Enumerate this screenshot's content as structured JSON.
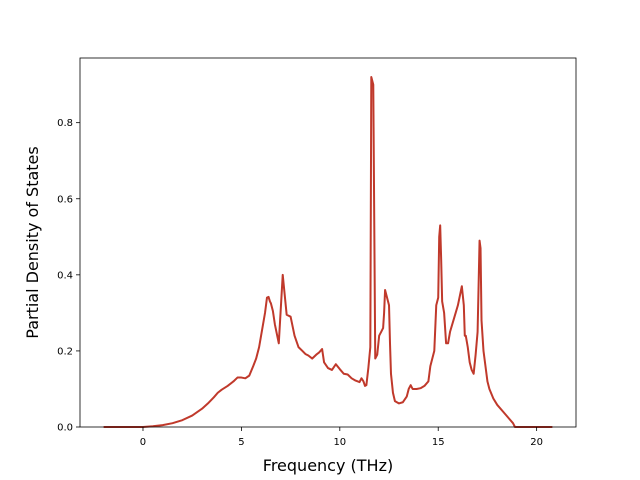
{
  "chart_data": {
    "type": "line",
    "xlabel": "Frequency (THz)",
    "ylabel": "Partial Density of States",
    "xlim": [
      -3.2,
      22.0
    ],
    "ylim": [
      0.0,
      0.97
    ],
    "x_ticks": [
      0,
      5,
      10,
      15,
      20
    ],
    "y_ticks": [
      0.0,
      0.2,
      0.4,
      0.6,
      0.8
    ],
    "x_tick_labels": [
      "0",
      "5",
      "10",
      "15",
      "20"
    ],
    "y_tick_labels": [
      "0.0",
      "0.2",
      "0.4",
      "0.6",
      "0.8"
    ],
    "grid": false,
    "series": [
      {
        "color": "#c0392b",
        "x": [
          -2.0,
          -1.0,
          0.0,
          0.5,
          1.0,
          1.5,
          2.0,
          2.5,
          3.0,
          3.3,
          3.6,
          3.8,
          4.0,
          4.3,
          4.6,
          4.8,
          5.0,
          5.2,
          5.4,
          5.6,
          5.75,
          5.9,
          6.0,
          6.1,
          6.2,
          6.3,
          6.38,
          6.45,
          6.5,
          6.6,
          6.7,
          6.9,
          7.1,
          7.3,
          7.5,
          7.7,
          7.9,
          8.1,
          8.25,
          8.4,
          8.6,
          8.8,
          8.95,
          9.1,
          9.2,
          9.4,
          9.6,
          9.8,
          10.0,
          10.2,
          10.4,
          10.6,
          10.8,
          10.9,
          11.0,
          11.1,
          11.2,
          11.28,
          11.35,
          11.45,
          11.55,
          11.6,
          11.7,
          11.8,
          11.9,
          12.0,
          12.1,
          12.2,
          12.25,
          12.3,
          12.4,
          12.5,
          12.55,
          12.6,
          12.7,
          12.8,
          13.0,
          13.2,
          13.4,
          13.5,
          13.6,
          13.7,
          13.9,
          14.1,
          14.3,
          14.5,
          14.6,
          14.8,
          14.9,
          15.0,
          15.05,
          15.1,
          15.15,
          15.2,
          15.3,
          15.4,
          15.5,
          15.6,
          15.8,
          16.0,
          16.2,
          16.3,
          16.35,
          16.4,
          16.5,
          16.6,
          16.7,
          16.8,
          16.9,
          17.0,
          17.1,
          17.15,
          17.2,
          17.3,
          17.4,
          17.5,
          17.6,
          17.8,
          18.0,
          18.3,
          18.6,
          18.8,
          18.9,
          19.0,
          19.2,
          19.5,
          20.0,
          20.5,
          20.8
        ],
        "y": [
          0.0,
          0.0,
          0.0,
          0.002,
          0.005,
          0.01,
          0.018,
          0.03,
          0.048,
          0.062,
          0.078,
          0.09,
          0.098,
          0.108,
          0.12,
          0.13,
          0.13,
          0.128,
          0.135,
          0.16,
          0.18,
          0.21,
          0.24,
          0.27,
          0.3,
          0.34,
          0.342,
          0.33,
          0.325,
          0.305,
          0.27,
          0.22,
          0.4,
          0.295,
          0.29,
          0.24,
          0.21,
          0.2,
          0.192,
          0.188,
          0.18,
          0.19,
          0.196,
          0.205,
          0.17,
          0.155,
          0.15,
          0.165,
          0.152,
          0.14,
          0.138,
          0.128,
          0.122,
          0.12,
          0.118,
          0.128,
          0.12,
          0.108,
          0.11,
          0.155,
          0.21,
          0.92,
          0.9,
          0.18,
          0.19,
          0.24,
          0.25,
          0.26,
          0.3,
          0.36,
          0.34,
          0.32,
          0.22,
          0.14,
          0.09,
          0.068,
          0.062,
          0.065,
          0.08,
          0.1,
          0.11,
          0.1,
          0.1,
          0.102,
          0.108,
          0.12,
          0.16,
          0.2,
          0.32,
          0.34,
          0.5,
          0.53,
          0.44,
          0.33,
          0.3,
          0.22,
          0.22,
          0.25,
          0.285,
          0.32,
          0.37,
          0.32,
          0.24,
          0.24,
          0.21,
          0.17,
          0.15,
          0.14,
          0.19,
          0.25,
          0.49,
          0.47,
          0.28,
          0.2,
          0.16,
          0.12,
          0.1,
          0.075,
          0.058,
          0.04,
          0.022,
          0.01,
          0.0,
          0.0,
          0.0,
          0.0,
          0.0,
          0.0,
          0.0
        ]
      }
    ]
  }
}
